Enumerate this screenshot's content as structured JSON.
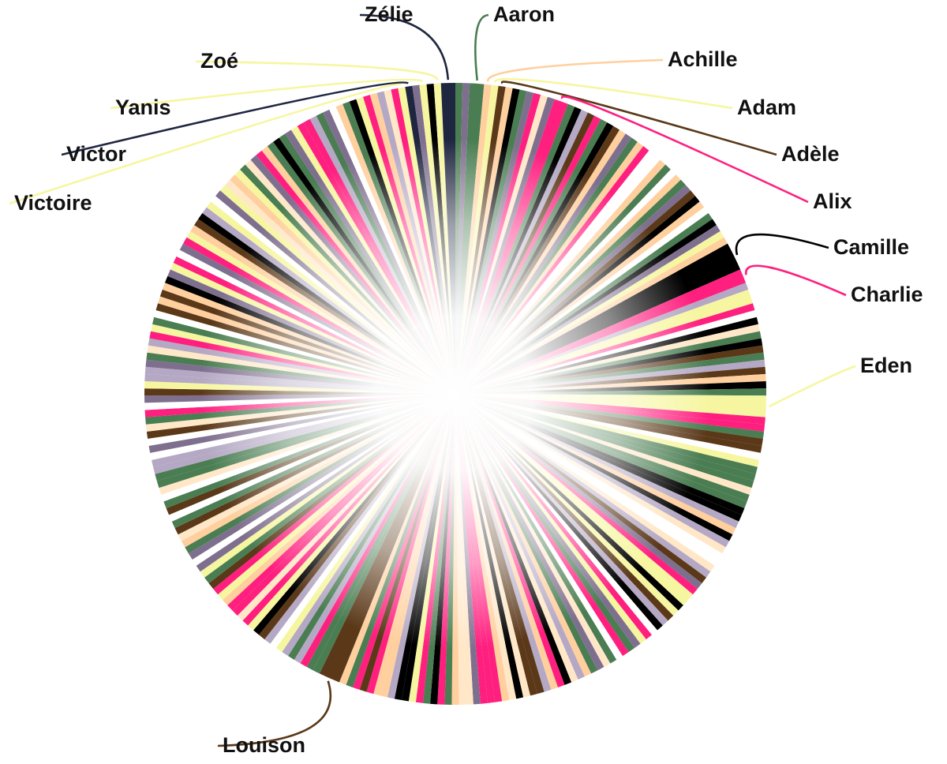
{
  "chart_data": {
    "type": "pie",
    "title": "",
    "subtitle": "",
    "labeled_slices": [
      {
        "name": "Aaron",
        "value": 2,
        "color": "#4a7d52"
      },
      {
        "name": "Achille",
        "value": 1,
        "color": "#ffcf9e"
      },
      {
        "name": "Adam",
        "value": 1,
        "color": "#f6f6a0"
      },
      {
        "name": "Adèle",
        "value": 1,
        "color": "#5a3818"
      },
      {
        "name": "Alix",
        "value": 2,
        "color": "#ff1f7f"
      },
      {
        "name": "Camille",
        "value": 4,
        "color": "#000000"
      },
      {
        "name": "Charlie",
        "value": 2,
        "color": "#ff1f7f"
      },
      {
        "name": "Eden",
        "value": 3,
        "color": "#f6f6a0"
      },
      {
        "name": "Louison",
        "value": 3,
        "color": "#5a3818"
      },
      {
        "name": "Victoire",
        "value": 1,
        "color": "#f6f6a0"
      },
      {
        "name": "Victor",
        "value": 1,
        "color": "#1f2640"
      },
      {
        "name": "Yanis",
        "value": 1,
        "color": "#f6f6a0"
      },
      {
        "name": "Zoé",
        "value": 1,
        "color": "#f6f6a0"
      },
      {
        "name": "Zélie",
        "value": 2,
        "color": "#1f2640"
      }
    ],
    "unlabeled_slice_count": 246,
    "unlabeled_slice_value": 1,
    "palette": [
      "#ff1f7f",
      "#ffcf9e",
      "#000000",
      "#f6f6a0",
      "#4a7d52",
      "#7f6f8f",
      "#5a3818",
      "#b4a8c4",
      "#ffe7c7",
      "#ffffff"
    ],
    "legend": "none"
  }
}
